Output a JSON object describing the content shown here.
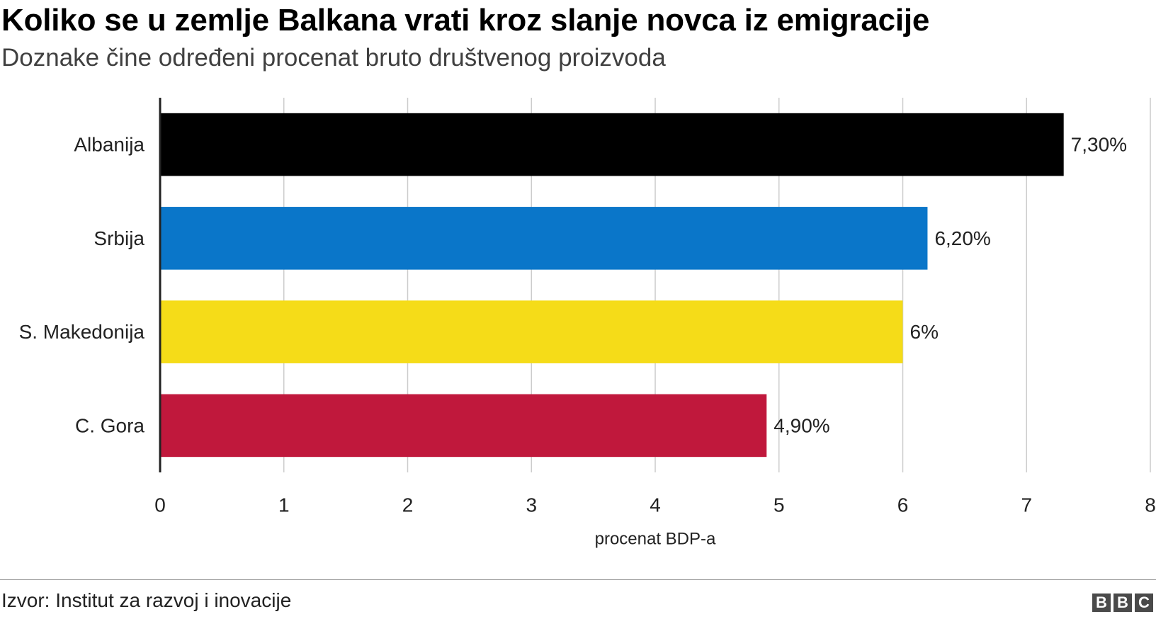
{
  "header": {
    "title": "Koliko se u zemlje Balkana vrati kroz slanje novca iz emigracije",
    "subtitle": "Doznake čine određeni procenat bruto društvenog proizvoda"
  },
  "footer": {
    "source": "Izvor: Institut za razvoj i inovacije",
    "logo": [
      "B",
      "B",
      "C"
    ]
  },
  "chart_data": {
    "type": "bar",
    "orientation": "horizontal",
    "title": "Koliko se u zemlje Balkana vrati kroz slanje novca iz emigracije",
    "subtitle": "Doznake čine određeni procenat bruto društvenog proizvoda",
    "categories": [
      "Albanija",
      "Srbija",
      "S. Makedonija",
      "C. Gora"
    ],
    "values": [
      7.3,
      6.2,
      6.0,
      4.9
    ],
    "value_labels": [
      "7,30%",
      "6,20%",
      "6%",
      "4,90%"
    ],
    "colors": [
      "#000000",
      "#0a76c9",
      "#f5dc18",
      "#c0183c"
    ],
    "xlabel": "procenat BDP-a",
    "ylabel": "",
    "xlim": [
      0,
      8
    ],
    "xticks": [
      "0",
      "1",
      "2",
      "3",
      "4",
      "5",
      "6",
      "7",
      "8"
    ],
    "grid": true,
    "legend": "none"
  }
}
